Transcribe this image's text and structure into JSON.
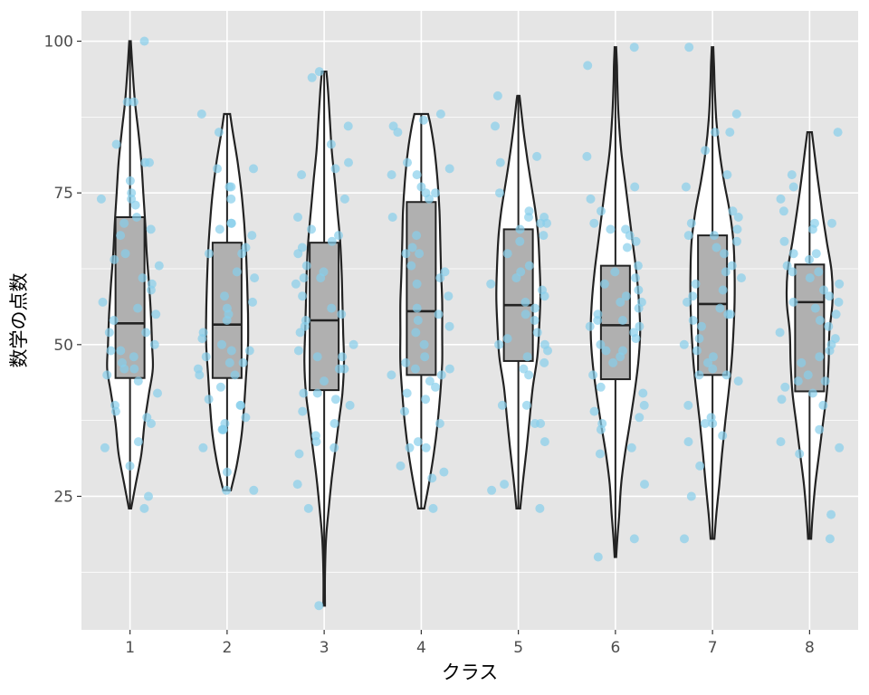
{
  "chart_data": {
    "type": "violin",
    "xlabel": "クラス",
    "ylabel": "数学の点数",
    "categories": [
      "1",
      "2",
      "3",
      "4",
      "5",
      "6",
      "7",
      "8"
    ],
    "ylim": [
      3,
      105
    ],
    "yticks": [
      25,
      50,
      75,
      100
    ],
    "grid": true,
    "legend": "none",
    "colors": {
      "panel": "#e5e5e5",
      "grid": "#ffffff",
      "violin_fill": "#ffffff",
      "outline": "#222222",
      "box_fill": "#b0b0b0",
      "points": "#87ceeb"
    },
    "groups": [
      {
        "name": "1",
        "box": {
          "q1": 44.5,
          "median": 53.5,
          "q3": 71
        },
        "violin": [
          [
            23,
            0.03
          ],
          [
            27,
            0.15
          ],
          [
            32,
            0.3
          ],
          [
            37,
            0.38
          ],
          [
            42,
            0.5
          ],
          [
            46,
            0.6
          ],
          [
            50,
            0.58
          ],
          [
            55,
            0.55
          ],
          [
            60,
            0.5
          ],
          [
            65,
            0.44
          ],
          [
            70,
            0.4
          ],
          [
            75,
            0.35
          ],
          [
            80,
            0.3
          ],
          [
            85,
            0.22
          ],
          [
            90,
            0.13
          ],
          [
            95,
            0.07
          ],
          [
            100,
            0.02
          ]
        ],
        "points": [
          100,
          90,
          90,
          83,
          80,
          80,
          77,
          75,
          74,
          74,
          73,
          71,
          70,
          69,
          68,
          65,
          64,
          63,
          61,
          60,
          59,
          57,
          56,
          55,
          54,
          52,
          52,
          50,
          49,
          49,
          48,
          47,
          46,
          46,
          45,
          44,
          42,
          40,
          39,
          38,
          37,
          34,
          33,
          30,
          25,
          23
        ]
      },
      {
        "name": "2",
        "box": {
          "q1": 44.5,
          "median": 53.3,
          "q3": 66.8
        },
        "violin": [
          [
            26,
            0.1
          ],
          [
            30,
            0.25
          ],
          [
            35,
            0.38
          ],
          [
            40,
            0.45
          ],
          [
            45,
            0.5
          ],
          [
            50,
            0.55
          ],
          [
            55,
            0.55
          ],
          [
            60,
            0.53
          ],
          [
            65,
            0.5
          ],
          [
            70,
            0.45
          ],
          [
            75,
            0.38
          ],
          [
            80,
            0.28
          ],
          [
            85,
            0.15
          ],
          [
            88,
            0.08
          ]
        ],
        "points": [
          88,
          85,
          79,
          79,
          76,
          76,
          74,
          70,
          70,
          69,
          68,
          66,
          65,
          65,
          62,
          61,
          58,
          57,
          56,
          55,
          54,
          52,
          51,
          50,
          49,
          49,
          48,
          47,
          47,
          46,
          45,
          45,
          43,
          41,
          40,
          40,
          38,
          37,
          36,
          36,
          36,
          33,
          29,
          26,
          26
        ]
      },
      {
        "name": "3",
        "box": {
          "q1": 42.5,
          "median": 54.0,
          "q3": 66.8
        },
        "violin": [
          [
            7,
            0.02
          ],
          [
            12,
            0.02
          ],
          [
            18,
            0.05
          ],
          [
            23,
            0.12
          ],
          [
            28,
            0.2
          ],
          [
            33,
            0.3
          ],
          [
            38,
            0.4
          ],
          [
            42,
            0.48
          ],
          [
            47,
            0.52
          ],
          [
            52,
            0.5
          ],
          [
            57,
            0.48
          ],
          [
            62,
            0.46
          ],
          [
            67,
            0.42
          ],
          [
            72,
            0.35
          ],
          [
            77,
            0.28
          ],
          [
            82,
            0.2
          ],
          [
            87,
            0.15
          ],
          [
            92,
            0.1
          ],
          [
            95,
            0.06
          ]
        ],
        "points": [
          95,
          94,
          86,
          83,
          80,
          79,
          78,
          74,
          71,
          69,
          68,
          67,
          66,
          65,
          63,
          62,
          61,
          61,
          60,
          58,
          56,
          55,
          54,
          53,
          52,
          50,
          49,
          48,
          48,
          46,
          46,
          44,
          42,
          42,
          41,
          40,
          39,
          37,
          35,
          34,
          33,
          32,
          27,
          23,
          7
        ]
      },
      {
        "name": "4",
        "box": {
          "q1": 45.0,
          "median": 55.5,
          "q3": 73.5
        },
        "violin": [
          [
            23,
            0.08
          ],
          [
            27,
            0.2
          ],
          [
            32,
            0.33
          ],
          [
            37,
            0.43
          ],
          [
            42,
            0.5
          ],
          [
            47,
            0.55
          ],
          [
            52,
            0.55
          ],
          [
            57,
            0.55
          ],
          [
            62,
            0.52
          ],
          [
            67,
            0.5
          ],
          [
            72,
            0.48
          ],
          [
            77,
            0.43
          ],
          [
            82,
            0.35
          ],
          [
            86,
            0.25
          ],
          [
            88,
            0.18
          ]
        ],
        "points": [
          88,
          87,
          86,
          85,
          80,
          79,
          78,
          78,
          76,
          75,
          75,
          74,
          71,
          68,
          66,
          65,
          65,
          63,
          62,
          61,
          60,
          58,
          56,
          55,
          54,
          53,
          52,
          50,
          48,
          47,
          46,
          46,
          45,
          45,
          44,
          43,
          42,
          41,
          39,
          37,
          34,
          33,
          33,
          30,
          29,
          28,
          23
        ]
      },
      {
        "name": "5",
        "box": {
          "q1": 47.3,
          "median": 56.5,
          "q3": 69.0
        },
        "violin": [
          [
            23,
            0.05
          ],
          [
            28,
            0.13
          ],
          [
            33,
            0.22
          ],
          [
            38,
            0.3
          ],
          [
            43,
            0.38
          ],
          [
            48,
            0.5
          ],
          [
            53,
            0.55
          ],
          [
            58,
            0.58
          ],
          [
            63,
            0.56
          ],
          [
            68,
            0.52
          ],
          [
            72,
            0.45
          ],
          [
            76,
            0.35
          ],
          [
            80,
            0.25
          ],
          [
            85,
            0.14
          ],
          [
            90,
            0.05
          ],
          [
            91,
            0.03
          ]
        ],
        "points": [
          91,
          86,
          81,
          80,
          75,
          72,
          71,
          71,
          70,
          70,
          69,
          68,
          67,
          65,
          63,
          62,
          61,
          60,
          59,
          58,
          57,
          56,
          55,
          54,
          52,
          51,
          50,
          50,
          49,
          48,
          47,
          46,
          45,
          40,
          40,
          37,
          37,
          34,
          27,
          26,
          23
        ]
      },
      {
        "name": "6",
        "box": {
          "q1": 44.3,
          "median": 53.2,
          "q3": 63.0
        },
        "violin": [
          [
            15,
            0.02
          ],
          [
            18,
            0.05
          ],
          [
            22,
            0.1
          ],
          [
            27,
            0.15
          ],
          [
            32,
            0.25
          ],
          [
            37,
            0.38
          ],
          [
            42,
            0.5
          ],
          [
            47,
            0.6
          ],
          [
            52,
            0.65
          ],
          [
            57,
            0.62
          ],
          [
            62,
            0.55
          ],
          [
            67,
            0.45
          ],
          [
            72,
            0.35
          ],
          [
            77,
            0.25
          ],
          [
            82,
            0.15
          ],
          [
            88,
            0.08
          ],
          [
            93,
            0.05
          ],
          [
            96,
            0.04
          ],
          [
            99,
            0.02
          ]
        ],
        "points": [
          99,
          96,
          81,
          76,
          74,
          72,
          70,
          69,
          69,
          68,
          67,
          66,
          63,
          62,
          61,
          60,
          59,
          58,
          57,
          57,
          56,
          55,
          54,
          54,
          53,
          53,
          52,
          51,
          50,
          49,
          49,
          48,
          47,
          45,
          43,
          42,
          40,
          39,
          38,
          37,
          36,
          33,
          32,
          27,
          18,
          15
        ]
      },
      {
        "name": "7",
        "box": {
          "q1": 45.0,
          "median": 56.7,
          "q3": 68.0
        },
        "violin": [
          [
            18,
            0.05
          ],
          [
            22,
            0.1
          ],
          [
            27,
            0.18
          ],
          [
            32,
            0.25
          ],
          [
            37,
            0.33
          ],
          [
            42,
            0.42
          ],
          [
            47,
            0.5
          ],
          [
            52,
            0.55
          ],
          [
            57,
            0.58
          ],
          [
            62,
            0.58
          ],
          [
            67,
            0.55
          ],
          [
            72,
            0.45
          ],
          [
            77,
            0.3
          ],
          [
            82,
            0.18
          ],
          [
            87,
            0.1
          ],
          [
            92,
            0.06
          ],
          [
            96,
            0.04
          ],
          [
            99,
            0.02
          ]
        ],
        "points": [
          99,
          88,
          85,
          85,
          82,
          78,
          76,
          72,
          71,
          70,
          69,
          68,
          68,
          67,
          66,
          65,
          63,
          62,
          61,
          60,
          59,
          58,
          57,
          56,
          55,
          55,
          54,
          53,
          51,
          50,
          49,
          48,
          47,
          46,
          45,
          45,
          44,
          40,
          38,
          37,
          37,
          35,
          34,
          30,
          25,
          18
        ]
      },
      {
        "name": "8",
        "box": {
          "q1": 42.3,
          "median": 57.0,
          "q3": 63.2
        },
        "violin": [
          [
            18,
            0.04
          ],
          [
            22,
            0.08
          ],
          [
            27,
            0.15
          ],
          [
            32,
            0.25
          ],
          [
            37,
            0.35
          ],
          [
            42,
            0.45
          ],
          [
            47,
            0.5
          ],
          [
            52,
            0.52
          ],
          [
            57,
            0.6
          ],
          [
            62,
            0.58
          ],
          [
            67,
            0.45
          ],
          [
            72,
            0.33
          ],
          [
            77,
            0.22
          ],
          [
            82,
            0.12
          ],
          [
            85,
            0.06
          ]
        ],
        "points": [
          85,
          78,
          76,
          74,
          72,
          70,
          70,
          69,
          67,
          65,
          65,
          64,
          63,
          62,
          62,
          61,
          60,
          59,
          58,
          57,
          57,
          56,
          55,
          54,
          53,
          52,
          51,
          50,
          49,
          48,
          47,
          45,
          44,
          44,
          43,
          42,
          41,
          40,
          36,
          34,
          33,
          32,
          22,
          18
        ]
      }
    ]
  }
}
